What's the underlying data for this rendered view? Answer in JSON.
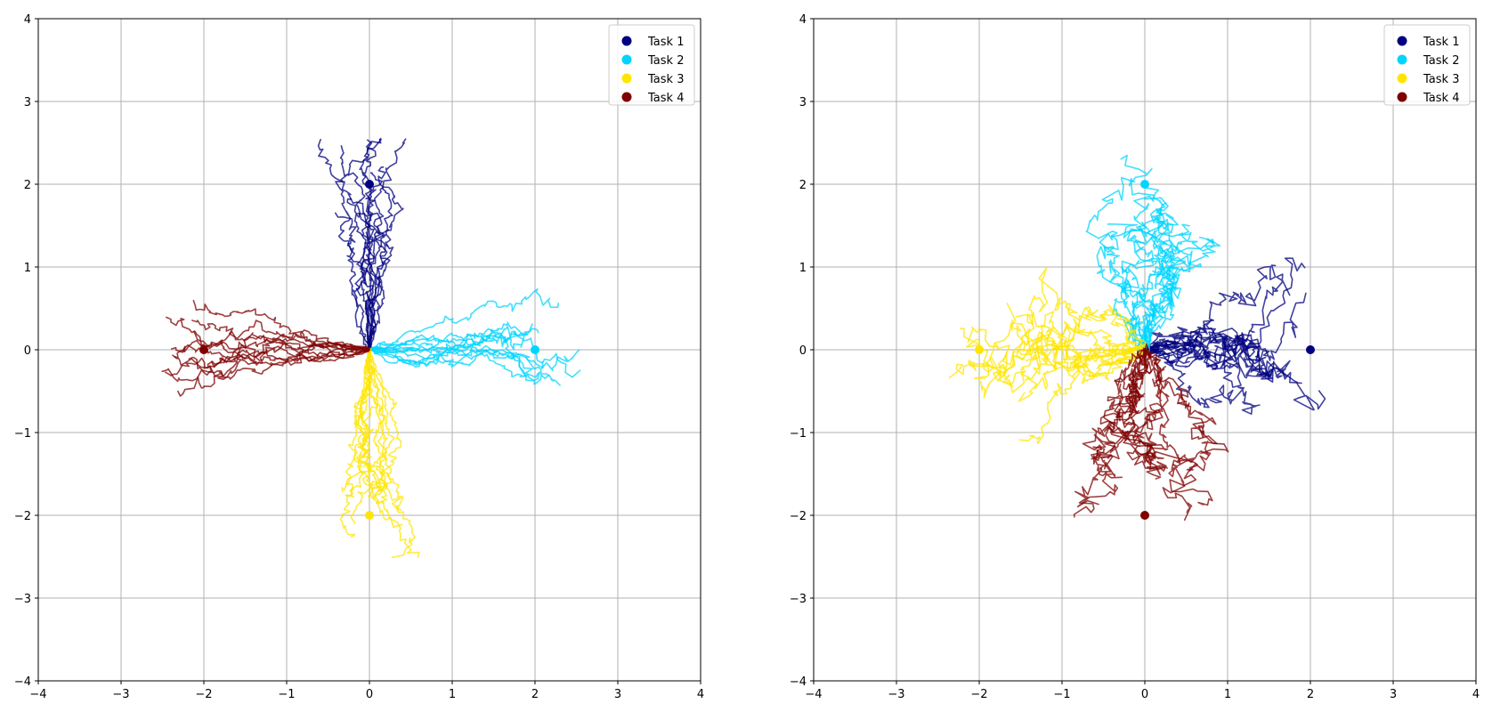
{
  "chart_data": [
    {
      "type": "line",
      "title": "",
      "xlabel": "",
      "ylabel": "",
      "xlim": [
        -4,
        4
      ],
      "ylim": [
        -4,
        4
      ],
      "xticks": [
        -4,
        -3,
        -2,
        -1,
        0,
        1,
        2,
        3,
        4
      ],
      "yticks": [
        -4,
        -3,
        -2,
        -1,
        0,
        1,
        2,
        3,
        4
      ],
      "xtick_labels": [
        "−4",
        "−3",
        "−2",
        "−1",
        "0",
        "1",
        "2",
        "3",
        "4"
      ],
      "ytick_labels": [
        "−4",
        "−3",
        "−2",
        "−1",
        "0",
        "1",
        "2",
        "3",
        "4"
      ],
      "grid": true,
      "legend_position": "top-right",
      "series": [
        {
          "name": "Task 1",
          "color": "#00007f",
          "goal": [
            0,
            2
          ],
          "direction": [
            0,
            1
          ],
          "trajectories": 12,
          "endpoint_range": [
            1.5,
            2.6
          ]
        },
        {
          "name": "Task 2",
          "color": "#00d4ff",
          "goal": [
            2,
            0
          ],
          "direction": [
            1,
            0
          ],
          "trajectories": 12,
          "endpoint_range": [
            1.8,
            2.55
          ]
        },
        {
          "name": "Task 3",
          "color": "#ffe500",
          "goal": [
            0,
            -2
          ],
          "direction": [
            0,
            -1
          ],
          "trajectories": 12,
          "endpoint_range": [
            1.4,
            2.55
          ]
        },
        {
          "name": "Task 4",
          "color": "#7f0000",
          "goal": [
            -2,
            0
          ],
          "direction": [
            -1,
            0
          ],
          "trajectories": 12,
          "endpoint_range": [
            1.8,
            2.6
          ]
        }
      ]
    },
    {
      "type": "line",
      "title": "",
      "xlabel": "",
      "ylabel": "",
      "xlim": [
        -4,
        4
      ],
      "ylim": [
        -4,
        4
      ],
      "xticks": [
        -4,
        -3,
        -2,
        -1,
        0,
        1,
        2,
        3,
        4
      ],
      "yticks": [
        -4,
        -3,
        -2,
        -1,
        0,
        1,
        2,
        3,
        4
      ],
      "xtick_labels": [
        "−4",
        "−3",
        "−2",
        "−1",
        "0",
        "1",
        "2",
        "3",
        "4"
      ],
      "ytick_labels": [
        "−4",
        "−3",
        "−2",
        "−1",
        "0",
        "1",
        "2",
        "3",
        "4"
      ],
      "grid": true,
      "legend_position": "top-right",
      "series": [
        {
          "name": "Task 1",
          "color": "#00007f",
          "goal": [
            2,
            0
          ],
          "direction": [
            1,
            0
          ],
          "trajectories": 12,
          "endpoint_range": [
            1.3,
            2.35
          ]
        },
        {
          "name": "Task 2",
          "color": "#00d4ff",
          "goal": [
            0,
            2
          ],
          "direction": [
            0,
            1
          ],
          "trajectories": 12,
          "endpoint_range": [
            1.2,
            2.35
          ]
        },
        {
          "name": "Task 3",
          "color": "#ffe500",
          "goal": [
            -2,
            0
          ],
          "direction": [
            -1,
            0
          ],
          "trajectories": 12,
          "endpoint_range": [
            1.3,
            2.7
          ]
        },
        {
          "name": "Task 4",
          "color": "#7f0000",
          "goal": [
            0,
            -2
          ],
          "direction": [
            0,
            -1
          ],
          "trajectories": 12,
          "endpoint_range": [
            1.3,
            2.25
          ]
        }
      ]
    }
  ]
}
